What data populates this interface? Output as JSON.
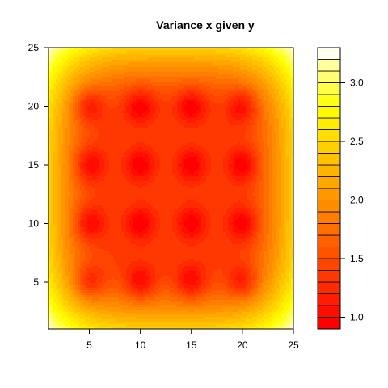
{
  "chart_data": {
    "type": "heatmap",
    "subtype": "filled-contour",
    "title": "Variance x given y",
    "xlabel": "",
    "ylabel": "",
    "xlim": [
      1,
      25
    ],
    "ylim": [
      1,
      25
    ],
    "x_ticks": [
      5,
      10,
      15,
      20,
      25
    ],
    "y_ticks": [
      5,
      10,
      15,
      20,
      25
    ],
    "x_tick_labels": [
      "5",
      "10",
      "15",
      "20",
      "25"
    ],
    "y_tick_labels": [
      "5",
      "10",
      "15",
      "20",
      "25"
    ],
    "minima_points": [
      {
        "x": 5,
        "y": 5
      },
      {
        "x": 10,
        "y": 5
      },
      {
        "x": 15,
        "y": 5
      },
      {
        "x": 20,
        "y": 5
      },
      {
        "x": 5,
        "y": 10
      },
      {
        "x": 10,
        "y": 10
      },
      {
        "x": 15,
        "y": 10
      },
      {
        "x": 20,
        "y": 10
      },
      {
        "x": 5,
        "y": 15
      },
      {
        "x": 10,
        "y": 15
      },
      {
        "x": 15,
        "y": 15
      },
      {
        "x": 20,
        "y": 15
      },
      {
        "x": 5,
        "y": 20
      },
      {
        "x": 10,
        "y": 20
      },
      {
        "x": 15,
        "y": 20
      },
      {
        "x": 20,
        "y": 20
      }
    ],
    "min_value": 0.9,
    "plateau_value": 1.4,
    "corner_value": 3.3,
    "colorbar": {
      "levels": [
        0.9,
        1.0,
        1.1,
        1.2,
        1.3,
        1.4,
        1.5,
        1.6,
        1.7,
        1.8,
        1.9,
        2.0,
        2.1,
        2.2,
        2.3,
        2.4,
        2.5,
        2.6,
        2.7,
        2.8,
        2.9,
        3.0,
        3.1,
        3.2,
        3.3
      ],
      "ticks": [
        1.0,
        1.5,
        2.0,
        2.5,
        3.0
      ],
      "tick_labels": [
        "1.0",
        "1.5",
        "2.0",
        "2.5",
        "3.0"
      ],
      "palette": "heat.colors",
      "low_color": "#FF0000",
      "mid_color": "#FF8000",
      "high_color": "#FFFF00",
      "top_color": "#FFFFF0"
    },
    "grid": false,
    "legend": "right colorbar"
  }
}
